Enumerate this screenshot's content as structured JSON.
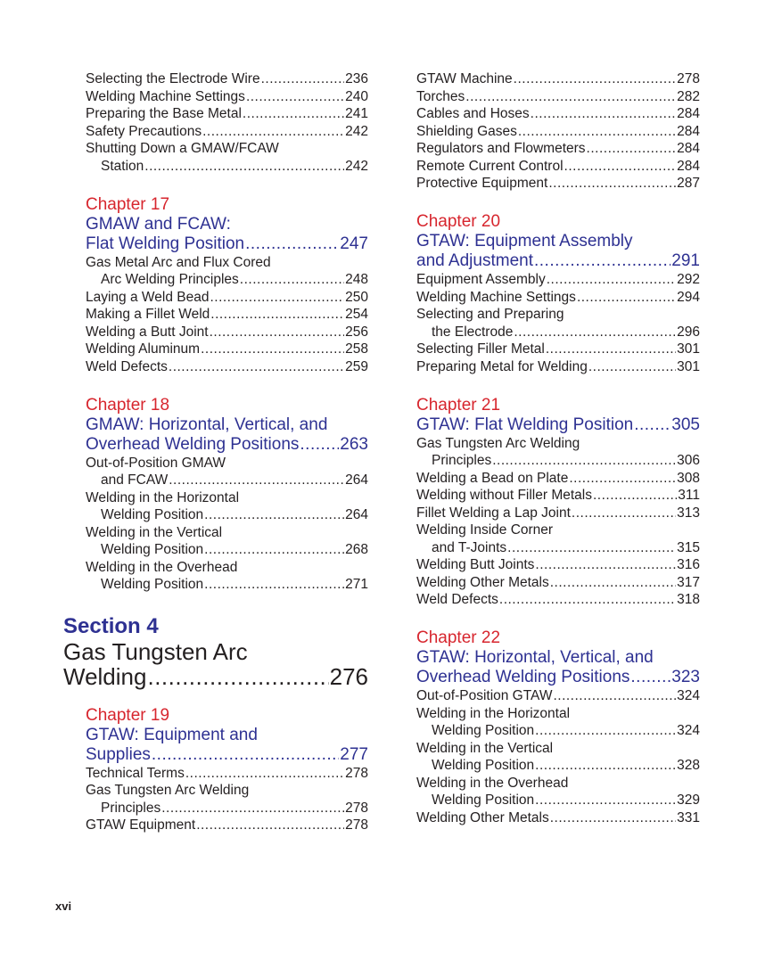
{
  "columns": [
    [
      {
        "type": "entries",
        "entries": [
          {
            "lines": [
              "Selecting the Electrode Wire"
            ],
            "page": "236"
          },
          {
            "lines": [
              "Welding Machine Settings"
            ],
            "page": "240"
          },
          {
            "lines": [
              "Preparing the Base Metal"
            ],
            "page": "241"
          },
          {
            "lines": [
              "Safety Precautions"
            ],
            "page": "242"
          },
          {
            "lines": [
              "Shutting Down a GMAW/FCAW",
              "Station"
            ],
            "page": "242"
          }
        ]
      },
      {
        "type": "chapter",
        "label": "Chapter 17",
        "title": [
          "GMAW and FCAW:",
          "Flat Welding Position"
        ],
        "page": "247",
        "entries": [
          {
            "lines": [
              "Gas Metal Arc and Flux Cored",
              "Arc Welding Principles"
            ],
            "page": "248"
          },
          {
            "lines": [
              "Laying a Weld Bead"
            ],
            "page": "250"
          },
          {
            "lines": [
              "Making a Fillet Weld"
            ],
            "page": "254"
          },
          {
            "lines": [
              "Welding a Butt Joint"
            ],
            "page": "256"
          },
          {
            "lines": [
              "Welding Aluminum"
            ],
            "page": "258"
          },
          {
            "lines": [
              "Weld Defects"
            ],
            "page": "259"
          }
        ]
      },
      {
        "type": "chapter",
        "label": "Chapter 18",
        "title": [
          "GMAW: Horizontal, Vertical, and",
          "Overhead Welding Positions"
        ],
        "page": "263",
        "entries": [
          {
            "lines": [
              "Out-of-Position GMAW",
              "and FCAW"
            ],
            "page": "264"
          },
          {
            "lines": [
              "Welding in the Horizontal",
              "Welding Position"
            ],
            "page": "264"
          },
          {
            "lines": [
              "Welding in the Vertical",
              "Welding Position"
            ],
            "page": "268"
          },
          {
            "lines": [
              "Welding in the Overhead",
              "Welding Position"
            ],
            "page": "271"
          }
        ]
      },
      {
        "type": "section",
        "label": "Section 4",
        "title": [
          "Gas Tungsten Arc",
          "Welding"
        ],
        "page": "276"
      },
      {
        "type": "chapter",
        "label": "Chapter 19",
        "title": [
          "GTAW: Equipment and",
          "Supplies"
        ],
        "page": "277",
        "entries": [
          {
            "lines": [
              "Technical Terms"
            ],
            "page": "278"
          },
          {
            "lines": [
              "Gas Tungsten Arc Welding",
              "Principles"
            ],
            "page": "278"
          },
          {
            "lines": [
              "GTAW Equipment"
            ],
            "page": "278"
          }
        ]
      }
    ],
    [
      {
        "type": "entries",
        "entries": [
          {
            "lines": [
              "GTAW Machine"
            ],
            "page": "278"
          },
          {
            "lines": [
              "Torches"
            ],
            "page": "282"
          },
          {
            "lines": [
              "Cables and Hoses"
            ],
            "page": "284"
          },
          {
            "lines": [
              "Shielding Gases"
            ],
            "page": "284"
          },
          {
            "lines": [
              "Regulators and Flowmeters"
            ],
            "page": "284"
          },
          {
            "lines": [
              "Remote Current Control"
            ],
            "page": "284"
          },
          {
            "lines": [
              "Protective Equipment"
            ],
            "page": "287"
          }
        ]
      },
      {
        "type": "chapter",
        "label": "Chapter 20",
        "title": [
          "GTAW: Equipment Assembly",
          "and Adjustment"
        ],
        "page": "291",
        "entries": [
          {
            "lines": [
              "Equipment Assembly"
            ],
            "page": "292"
          },
          {
            "lines": [
              "Welding Machine Settings"
            ],
            "page": "294"
          },
          {
            "lines": [
              "Selecting and Preparing",
              "the Electrode"
            ],
            "page": "296"
          },
          {
            "lines": [
              "Selecting Filler Metal"
            ],
            "page": "301"
          },
          {
            "lines": [
              "Preparing Metal for Welding"
            ],
            "page": "301"
          }
        ]
      },
      {
        "type": "chapter",
        "label": "Chapter 21",
        "title": [
          "GTAW: Flat Welding Position"
        ],
        "page": "305",
        "entries": [
          {
            "lines": [
              "Gas Tungsten Arc Welding",
              "Principles"
            ],
            "page": "306"
          },
          {
            "lines": [
              "Welding a Bead on Plate"
            ],
            "page": "308"
          },
          {
            "lines": [
              "Welding without Filler Metals"
            ],
            "page": "311"
          },
          {
            "lines": [
              "Fillet Welding a Lap Joint"
            ],
            "page": "313"
          },
          {
            "lines": [
              "Welding Inside Corner",
              "and T-Joints"
            ],
            "page": "315"
          },
          {
            "lines": [
              "Welding Butt Joints"
            ],
            "page": "316"
          },
          {
            "lines": [
              "Welding Other Metals"
            ],
            "page": "317"
          },
          {
            "lines": [
              "Weld Defects"
            ],
            "page": "318"
          }
        ]
      },
      {
        "type": "chapter",
        "label": "Chapter 22",
        "title": [
          "GTAW: Horizontal, Vertical, and",
          "Overhead Welding Positions"
        ],
        "page": "323",
        "entries": [
          {
            "lines": [
              "Out-of-Position GTAW"
            ],
            "page": "324"
          },
          {
            "lines": [
              "Welding in the Horizontal",
              "Welding Position"
            ],
            "page": "324"
          },
          {
            "lines": [
              "Welding in the Vertical",
              "Welding Position"
            ],
            "page": "328"
          },
          {
            "lines": [
              "Welding in the Overhead",
              "Welding Position"
            ],
            "page": "329"
          },
          {
            "lines": [
              "Welding Other Metals"
            ],
            "page": "331"
          }
        ]
      }
    ]
  ],
  "footer": {
    "page_number": "xvi"
  },
  "colors": {
    "chapter_label": "#d7262e",
    "chapter_title": "#2e3192",
    "text": "#231f20"
  }
}
